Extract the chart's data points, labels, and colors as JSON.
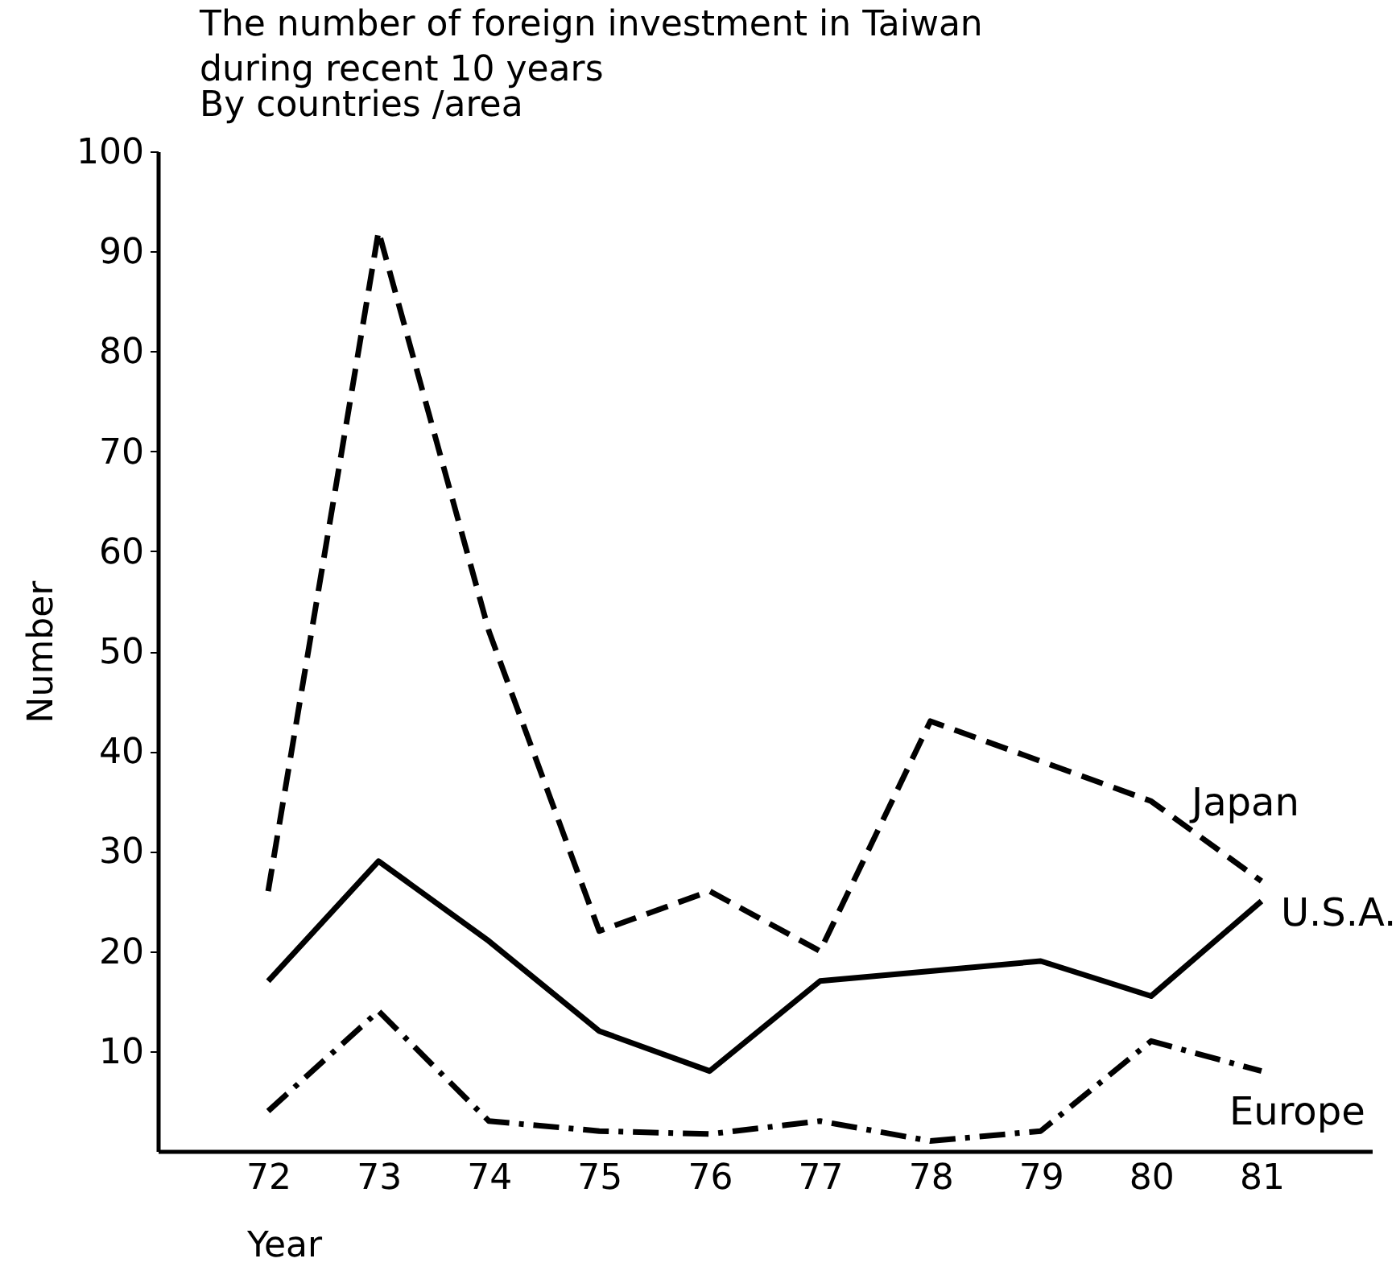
{
  "chart_data": {
    "type": "line",
    "title": "The number of foreign investment in Taiwan\nduring recent 10 years",
    "subtitle": "By countries /area",
    "xlabel": "Year",
    "ylabel": "Number",
    "categories": [
      "72",
      "73",
      "74",
      "75",
      "76",
      "77",
      "78",
      "79",
      "80",
      "81"
    ],
    "series": [
      {
        "name": "Japan",
        "color": "#000000",
        "line_style": "dashed",
        "values": [
          26,
          92,
          52,
          22,
          26,
          20,
          43,
          39,
          35,
          27
        ]
      },
      {
        "name": "U.S.A.",
        "color": "#000000",
        "line_style": "solid",
        "values": [
          17,
          29,
          21,
          12,
          8,
          17,
          18,
          19,
          15.5,
          25
        ]
      },
      {
        "name": "Europe",
        "color": "#000000",
        "line_style": "dashdot",
        "values": [
          4,
          14,
          3,
          2,
          1.7,
          3,
          1,
          2,
          11,
          8
        ]
      }
    ],
    "ylim": [
      0,
      100
    ],
    "yticks": [
      10,
      20,
      30,
      40,
      50,
      60,
      70,
      80,
      90,
      100
    ],
    "marker": "none"
  }
}
